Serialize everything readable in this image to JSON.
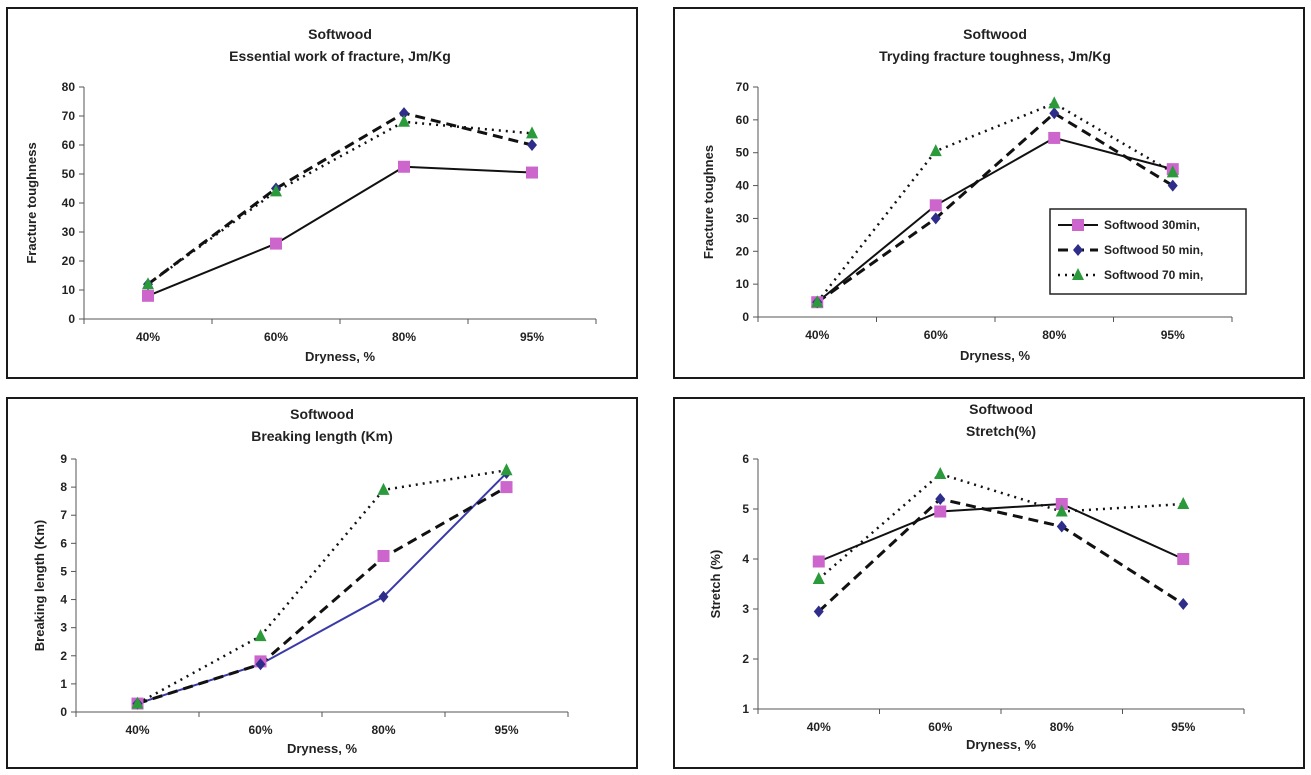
{
  "colors": {
    "series30": "#cc66cc",
    "series50": "#2e2e8a",
    "series70": "#2a9a3a",
    "line": "#111111",
    "blueLine": "#3a3aa8"
  },
  "chart_data": [
    {
      "type": "line",
      "title": "Softwood",
      "subtitle": "Essential work of fracture, Jm/Kg",
      "xlabel": "Dryness, %",
      "ylabel": "Fracture toughness",
      "categories": [
        "40%",
        "60%",
        "80%",
        "95%"
      ],
      "ylim": [
        0,
        80
      ],
      "ystep": 10,
      "series": [
        {
          "name": "Softwood 30min,",
          "values": [
            8,
            26,
            52.5,
            50.5
          ]
        },
        {
          "name": "Softwood 50 min,",
          "values": [
            12,
            45,
            71,
            60
          ]
        },
        {
          "name": "Softwood 70 min,",
          "values": [
            12,
            44,
            68,
            64
          ]
        }
      ]
    },
    {
      "type": "line",
      "title": "Softwood",
      "subtitle": "Tryding fracture toughness, Jm/Kg",
      "xlabel": "Dryness, %",
      "ylabel": "Fracture toughnes",
      "categories": [
        "40%",
        "60%",
        "80%",
        "95%"
      ],
      "ylim": [
        0,
        70
      ],
      "ystep": 10,
      "legend": "right-middle",
      "series": [
        {
          "name": "Softwood 30min,",
          "values": [
            4.5,
            34,
            54.5,
            45
          ]
        },
        {
          "name": "Softwood 50 min,",
          "values": [
            4.5,
            30,
            62,
            40
          ]
        },
        {
          "name": "Softwood 70 min,",
          "values": [
            4.5,
            50.5,
            65,
            44
          ]
        }
      ]
    },
    {
      "type": "line",
      "title": "Softwood",
      "subtitle": "Breaking length (Km)",
      "xlabel": "Dryness, %",
      "ylabel": "Breaking length (Km)",
      "categories": [
        "40%",
        "60%",
        "80%",
        "95%"
      ],
      "ylim": [
        0,
        9
      ],
      "ystep": 1,
      "series": [
        {
          "name": "Softwood 30min,",
          "values": [
            0.3,
            1.7,
            4.1,
            8.5
          ],
          "markerValues": [
            0.3,
            1.8,
            5.55,
            8.0
          ]
        },
        {
          "name": "Softwood 50 min,",
          "values": [
            0.3,
            1.7,
            5.5,
            8.0
          ],
          "markerValues": [
            0.3,
            1.7,
            4.1,
            8.5
          ]
        },
        {
          "name": "Softwood 70 min,",
          "values": [
            0.3,
            2.7,
            7.9,
            8.6
          ]
        }
      ]
    },
    {
      "type": "line",
      "title": "Softwood",
      "subtitle": "Stretch(%)",
      "xlabel": "Dryness, %",
      "ylabel": "Stretch (%)",
      "categories": [
        "40%",
        "60%",
        "80%",
        "95%"
      ],
      "ylim": [
        1,
        6
      ],
      "ystep": 1,
      "series": [
        {
          "name": "Softwood 30min,",
          "values": [
            3.95,
            4.95,
            5.1,
            4.0
          ]
        },
        {
          "name": "Softwood 50 min,",
          "values": [
            2.95,
            5.2,
            4.65,
            3.1
          ]
        },
        {
          "name": "Softwood 70 min,",
          "values": [
            3.6,
            5.7,
            4.95,
            5.1
          ]
        }
      ]
    }
  ]
}
